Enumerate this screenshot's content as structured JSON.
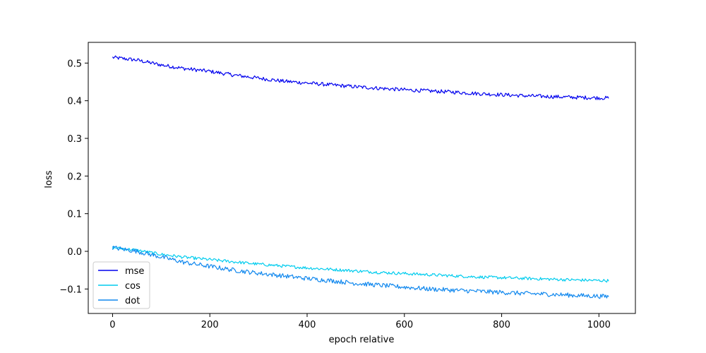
{
  "chart_data": {
    "type": "line",
    "title": "",
    "xlabel": "epoch relative",
    "ylabel": "loss",
    "xlim": [
      -50,
      1075
    ],
    "ylim": [
      -0.165,
      0.555
    ],
    "x_ticks": [
      0,
      200,
      400,
      600,
      800,
      1000
    ],
    "y_ticks": [
      -0.1,
      0.0,
      0.1,
      0.2,
      0.3,
      0.4,
      0.5
    ],
    "x_tick_labels": [
      "0",
      "200",
      "400",
      "600",
      "800",
      "1000"
    ],
    "y_tick_labels": [
      "−0.1",
      "0.0",
      "0.1",
      "0.2",
      "0.3",
      "0.4",
      "0.5"
    ],
    "grid": false,
    "legend_position": "lower-left",
    "series": [
      {
        "name": "mse",
        "color": "#0000ee",
        "points": [
          [
            0,
            0.515
          ],
          [
            50,
            0.508
          ],
          [
            100,
            0.495
          ],
          [
            150,
            0.485
          ],
          [
            200,
            0.478
          ],
          [
            250,
            0.468
          ],
          [
            300,
            0.46
          ],
          [
            350,
            0.452
          ],
          [
            400,
            0.447
          ],
          [
            450,
            0.442
          ],
          [
            500,
            0.437
          ],
          [
            550,
            0.433
          ],
          [
            600,
            0.429
          ],
          [
            650,
            0.426
          ],
          [
            700,
            0.423
          ],
          [
            750,
            0.419
          ],
          [
            800,
            0.416
          ],
          [
            850,
            0.413
          ],
          [
            900,
            0.411
          ],
          [
            950,
            0.409
          ],
          [
            1020,
            0.407
          ]
        ],
        "noise": 0.005
      },
      {
        "name": "cos",
        "color": "#00ccee",
        "points": [
          [
            0,
            0.01
          ],
          [
            50,
            0.003
          ],
          [
            100,
            -0.008
          ],
          [
            150,
            -0.016
          ],
          [
            200,
            -0.022
          ],
          [
            250,
            -0.028
          ],
          [
            300,
            -0.034
          ],
          [
            350,
            -0.039
          ],
          [
            400,
            -0.044
          ],
          [
            450,
            -0.048
          ],
          [
            500,
            -0.052
          ],
          [
            550,
            -0.056
          ],
          [
            600,
            -0.059
          ],
          [
            650,
            -0.062
          ],
          [
            700,
            -0.065
          ],
          [
            750,
            -0.068
          ],
          [
            800,
            -0.07
          ],
          [
            850,
            -0.072
          ],
          [
            900,
            -0.074
          ],
          [
            950,
            -0.076
          ],
          [
            1020,
            -0.078
          ]
        ],
        "noise": 0.004
      },
      {
        "name": "dot",
        "color": "#1188ee",
        "points": [
          [
            0,
            0.01
          ],
          [
            50,
            0.0
          ],
          [
            100,
            -0.015
          ],
          [
            150,
            -0.03
          ],
          [
            200,
            -0.04
          ],
          [
            250,
            -0.05
          ],
          [
            300,
            -0.058
          ],
          [
            350,
            -0.065
          ],
          [
            400,
            -0.072
          ],
          [
            450,
            -0.078
          ],
          [
            500,
            -0.085
          ],
          [
            550,
            -0.09
          ],
          [
            600,
            -0.095
          ],
          [
            650,
            -0.1
          ],
          [
            700,
            -0.103
          ],
          [
            750,
            -0.106
          ],
          [
            800,
            -0.109
          ],
          [
            850,
            -0.112
          ],
          [
            900,
            -0.114
          ],
          [
            950,
            -0.117
          ],
          [
            1020,
            -0.12
          ]
        ],
        "noise": 0.006
      }
    ]
  }
}
